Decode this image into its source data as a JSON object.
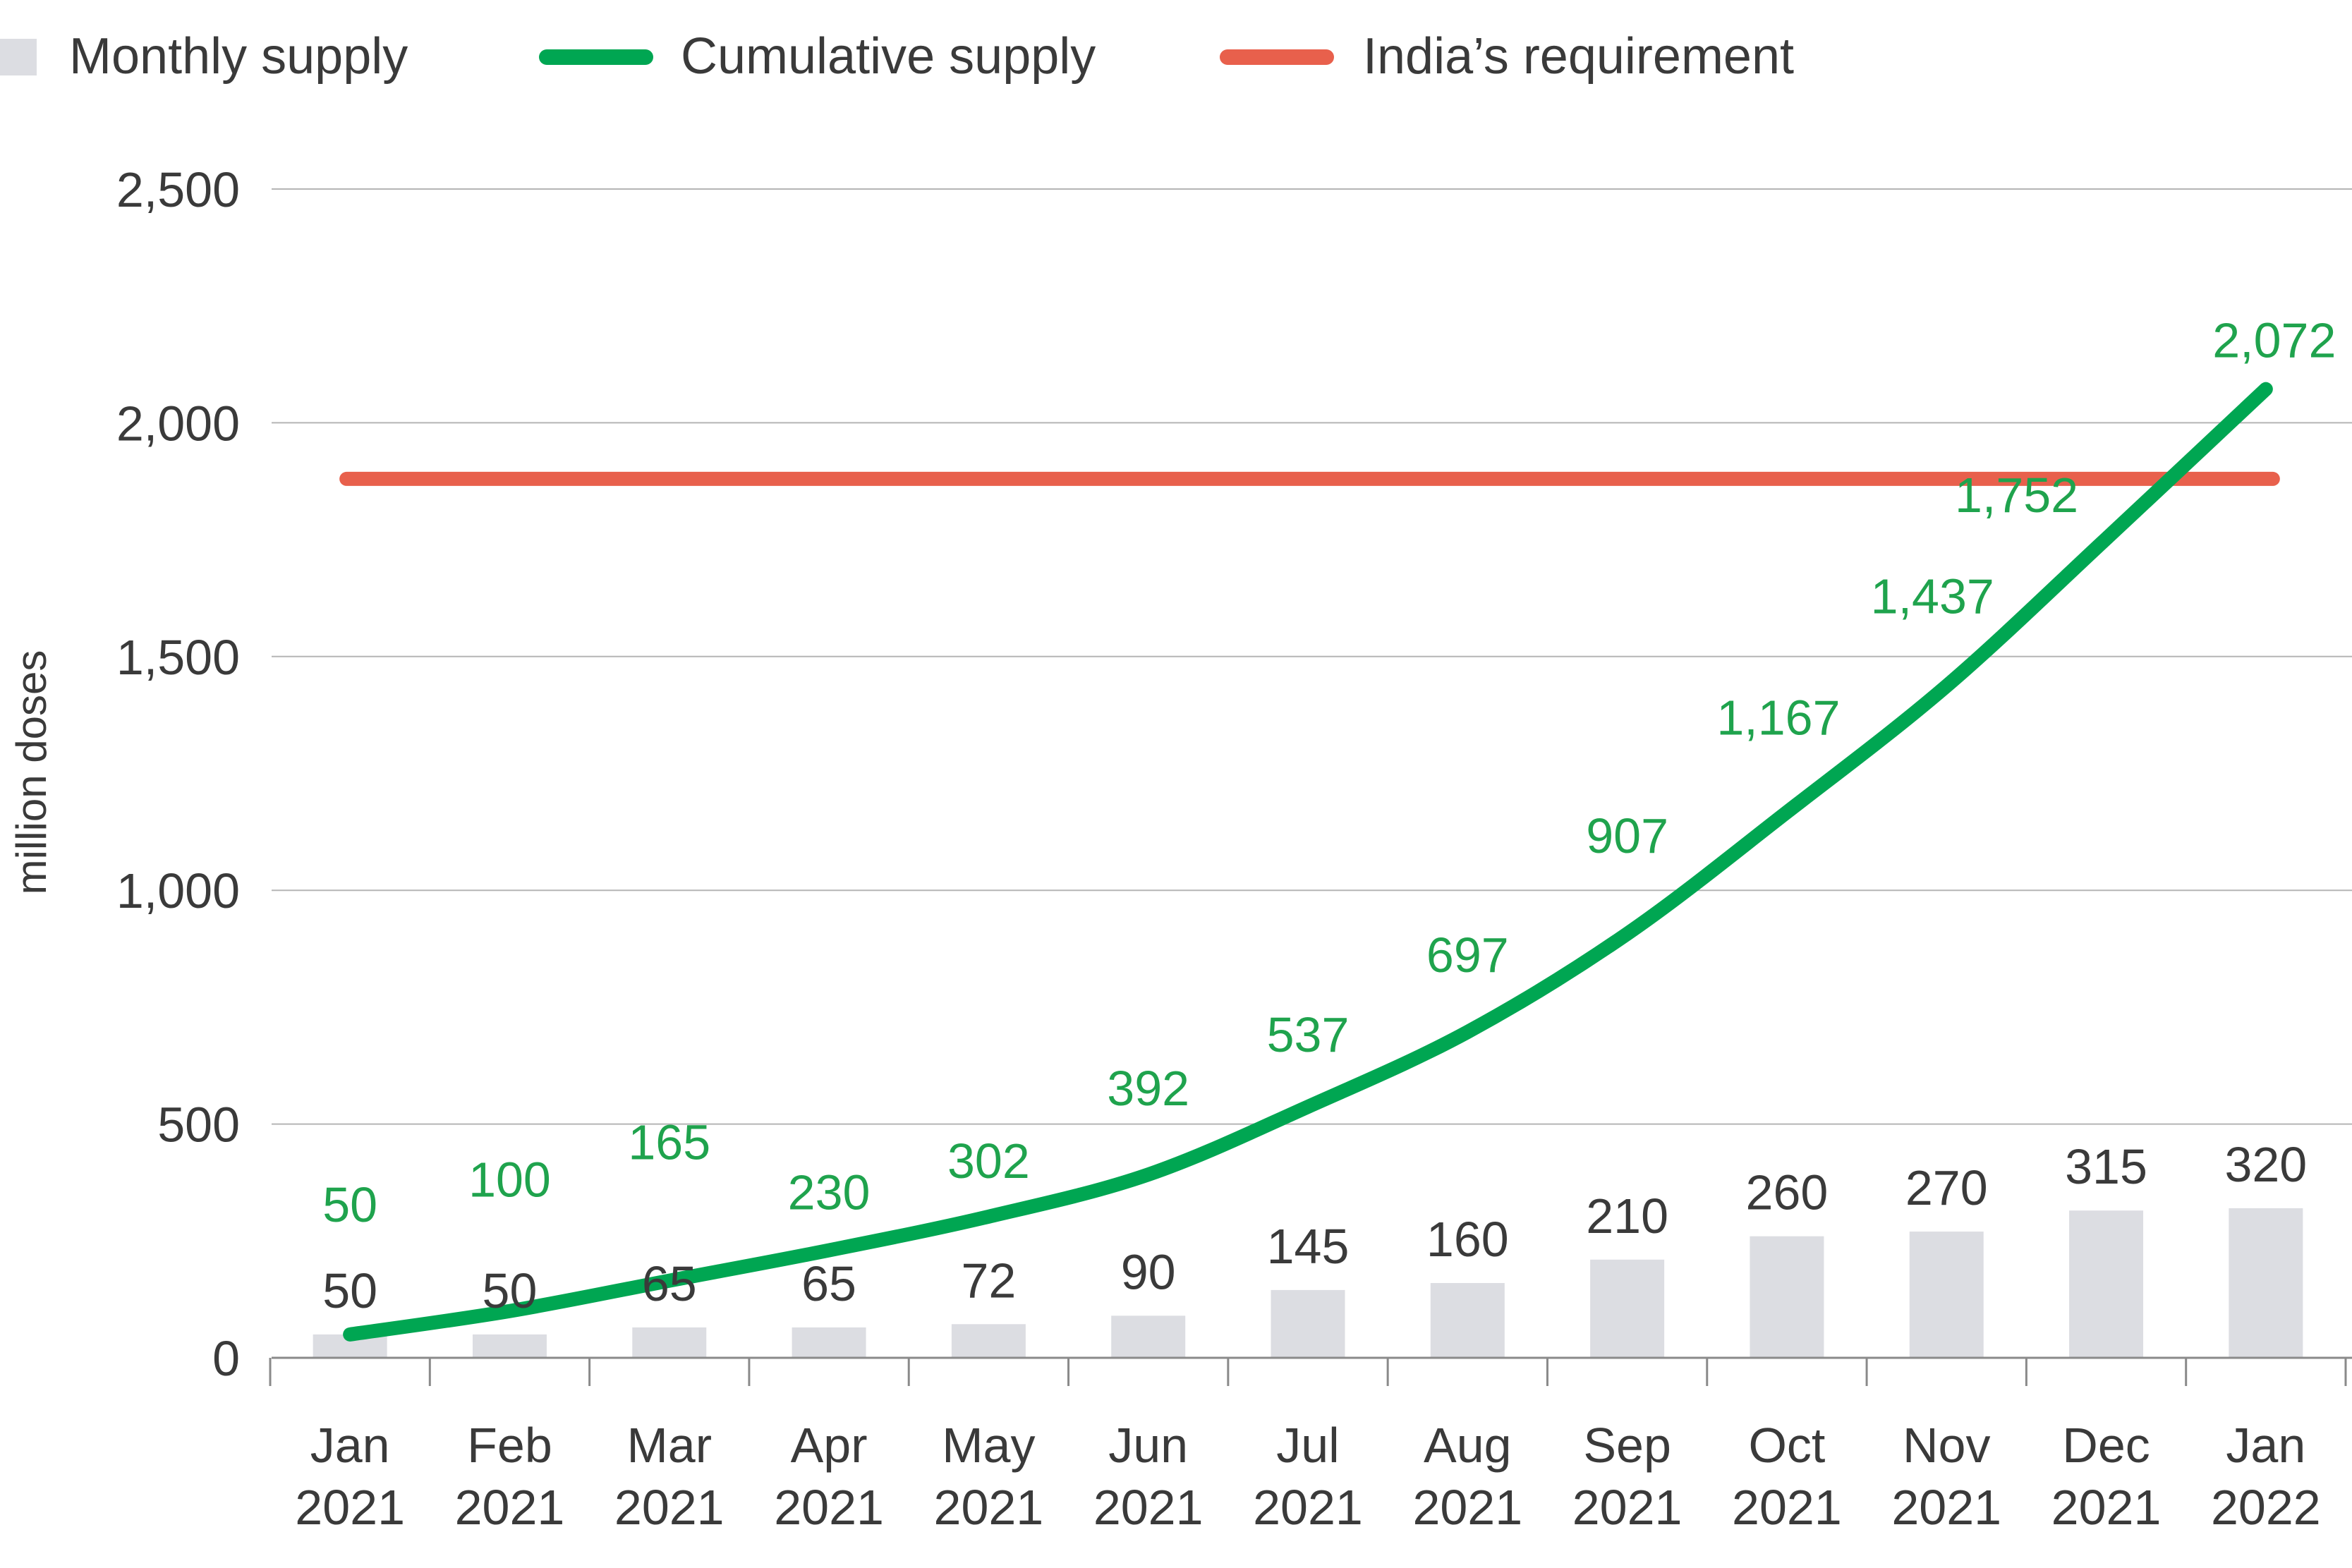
{
  "chart_data": {
    "type": "bar",
    "ylabel": "million doses",
    "ylim": [
      0,
      2500
    ],
    "yticks": [
      "0",
      "500",
      "1,000",
      "1,500",
      "2,000",
      "2,500"
    ],
    "grid": true,
    "legend_position": "top-left",
    "categories": [
      [
        "Jan",
        "2021"
      ],
      [
        "Feb",
        "2021"
      ],
      [
        "Mar",
        "2021"
      ],
      [
        "Apr",
        "2021"
      ],
      [
        "May",
        "2021"
      ],
      [
        "Jun",
        "2021"
      ],
      [
        "Jul",
        "2021"
      ],
      [
        "Aug",
        "2021"
      ],
      [
        "Sep",
        "2021"
      ],
      [
        "Oct",
        "2021"
      ],
      [
        "Nov",
        "2021"
      ],
      [
        "Dec",
        "2021"
      ],
      [
        "Jan",
        "2022"
      ]
    ],
    "series": [
      {
        "name": "Monthly supply",
        "kind": "bar",
        "color": "#dcdde2",
        "label_color": "#3a3a3a",
        "values": [
          50,
          50,
          65,
          65,
          72,
          90,
          145,
          160,
          210,
          260,
          270,
          315,
          320
        ],
        "labels": [
          "50",
          "50",
          "65",
          "65",
          "72",
          "90",
          "145",
          "160",
          "210",
          "260",
          "270",
          "315",
          "320"
        ]
      },
      {
        "name": "Cumulative supply",
        "kind": "line",
        "color": "#00a652",
        "label_color": "#1fa34d",
        "values": [
          50,
          100,
          165,
          230,
          302,
          392,
          537,
          697,
          907,
          1167,
          1437,
          1752,
          2072
        ],
        "labels": [
          "50",
          "100",
          "165",
          "230",
          "302",
          "392",
          "537",
          "697",
          "907",
          "1,167",
          "1,437",
          "1,752",
          "2,072"
        ]
      },
      {
        "name": "India’s requirement",
        "kind": "hline",
        "color": "#e8604c",
        "value": 1880
      }
    ]
  }
}
